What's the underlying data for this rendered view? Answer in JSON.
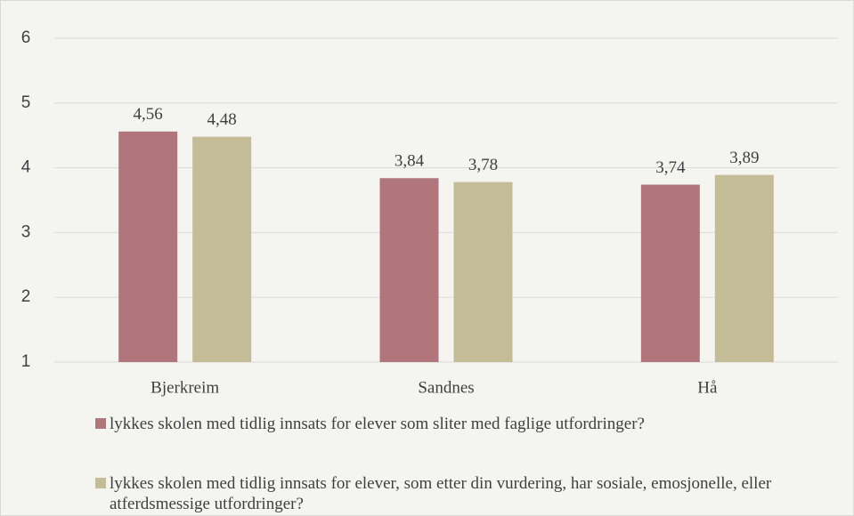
{
  "chart_data": {
    "type": "bar",
    "categories": [
      "Bjerkreim",
      "Sandnes",
      "Hå"
    ],
    "series": [
      {
        "name": "lykkes skolen med tidlig innsats for elever som sliter med faglige utfordringer?",
        "color": "#b0767c",
        "values": [
          4.56,
          3.84,
          3.74
        ],
        "value_labels": [
          "4,56",
          "3,84",
          "3,74"
        ]
      },
      {
        "name": "lykkes skolen med tidlig innsats for elever, som etter din vurdering, har sosiale, emosjonelle, eller atferdsmessige utfordringer?",
        "color": "#c4bc97",
        "values": [
          4.48,
          3.78,
          3.89
        ],
        "value_labels": [
          "4,48",
          "3,78",
          "3,89"
        ]
      }
    ],
    "ylim": [
      1,
      6
    ],
    "yticks": [
      1,
      2,
      3,
      4,
      5,
      6
    ],
    "grid": true,
    "legend": "bottom"
  }
}
